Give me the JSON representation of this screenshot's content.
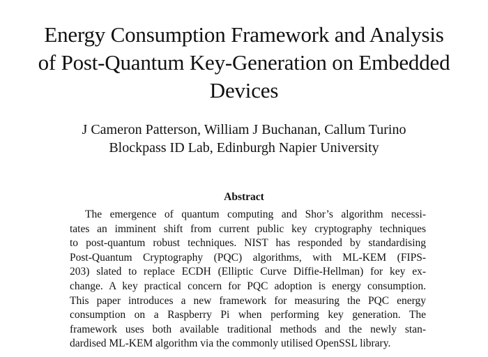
{
  "paper": {
    "title_lines": [
      "Energy Consumption Framework and Analysis",
      "of Post-Quantum Key-Generation on Embedded",
      "Devices"
    ],
    "authors": "J Cameron Patterson, William J Buchanan, Callum Turino",
    "affiliation": "Blockpass ID Lab, Edinburgh Napier University",
    "abstract_heading": "Abstract",
    "abstract_lines": [
      "The emergence of quantum computing and Shor’s algorithm necessi-",
      "tates an imminent shift from current public key cryptography techniques",
      "to post-quantum robust techniques.  NIST has responded by standardising",
      "Post-Quantum Cryptography (PQC) algorithms, with ML-KEM (FIPS-",
      "203) slated to replace ECDH (Elliptic Curve Diffie-Hellman) for key ex-",
      "change.  A key practical concern for PQC adoption is energy consumption.",
      "This paper introduces a new framework for measuring the PQC energy",
      "consumption on a Raspberry Pi when performing key generation.  The",
      "framework uses both available traditional methods and the newly stan-",
      "dardised ML-KEM algorithm via the commonly utilised OpenSSL library."
    ]
  }
}
